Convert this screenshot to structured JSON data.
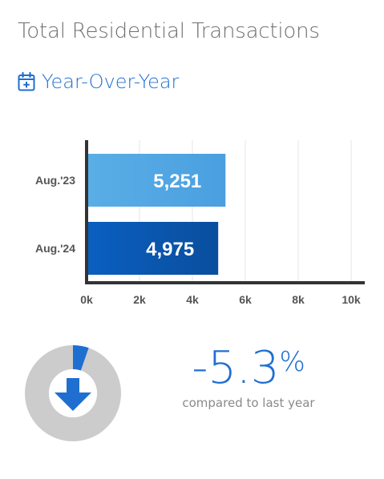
{
  "header": {
    "title": "Total Residential Transactions",
    "subtitle": "Year-Over-Year",
    "subtitle_icon": "calendar-plus-icon",
    "accent_color": "#1f6fd1"
  },
  "chart_data": {
    "type": "bar",
    "orientation": "horizontal",
    "categories": [
      "Aug.'23",
      "Aug.'24"
    ],
    "values": [
      5251,
      4975
    ],
    "value_labels": [
      "5,251",
      "4,975"
    ],
    "xlim": [
      0,
      10000
    ],
    "x_ticks": [
      0,
      2000,
      4000,
      6000,
      8000,
      10000
    ],
    "x_tick_labels": [
      "0k",
      "2k",
      "4k",
      "6k",
      "8k",
      "10k"
    ],
    "grid": true,
    "bar_colors": [
      "#5aaee6",
      "#0a56b0"
    ]
  },
  "change": {
    "value": "-5.3",
    "unit": "%",
    "caption": "compared to last year",
    "direction_icon": "arrow-down-icon",
    "ring_fraction": 0.053,
    "ring_color": "#1f6fd1",
    "ring_track_color": "#cccccc"
  }
}
